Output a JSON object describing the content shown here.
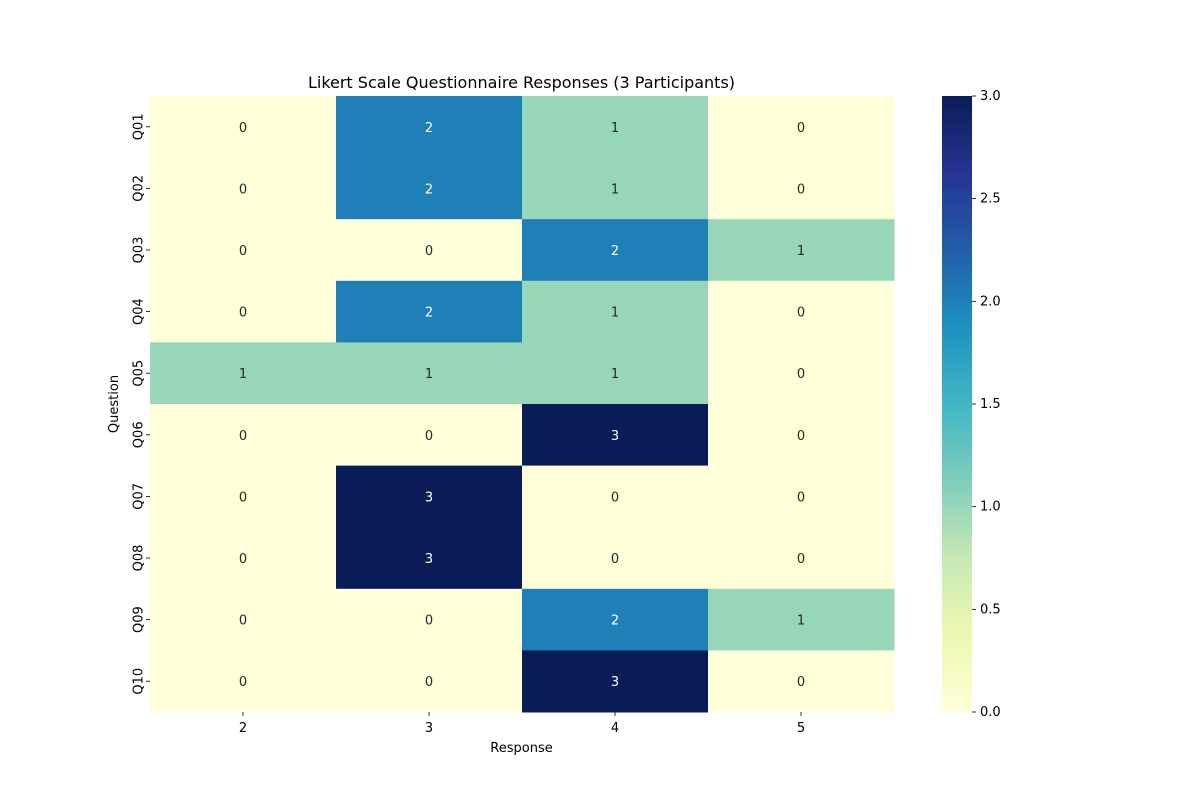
{
  "chart_data": {
    "type": "heatmap",
    "title": "Likert Scale Questionnaire Responses (3 Participants)",
    "xlabel": "Response",
    "ylabel": "Question",
    "x_categories": [
      "2",
      "3",
      "4",
      "5"
    ],
    "y_categories": [
      "Q01",
      "Q02",
      "Q03",
      "Q04",
      "Q05",
      "Q06",
      "Q07",
      "Q08",
      "Q09",
      "Q10"
    ],
    "values": [
      [
        0,
        2,
        1,
        0
      ],
      [
        0,
        2,
        1,
        0
      ],
      [
        0,
        0,
        2,
        1
      ],
      [
        0,
        2,
        1,
        0
      ],
      [
        1,
        1,
        1,
        0
      ],
      [
        0,
        0,
        3,
        0
      ],
      [
        0,
        3,
        0,
        0
      ],
      [
        0,
        3,
        0,
        0
      ],
      [
        0,
        0,
        2,
        1
      ],
      [
        0,
        0,
        3,
        0
      ]
    ],
    "colorbar": {
      "min": 0,
      "max": 3,
      "ticks": [
        "0.0",
        "0.5",
        "1.0",
        "1.5",
        "2.0",
        "2.5",
        "3.0"
      ],
      "colormap": "YlGnBu",
      "stops": [
        "#ffffd9",
        "#edf8b1",
        "#c7e9b4",
        "#7fcdbb",
        "#41b6c4",
        "#1d91c0",
        "#225ea8",
        "#253494",
        "#081d58"
      ]
    },
    "annotations": true,
    "annotation_colors": {
      "light": "#ffffff",
      "dark": "#262626"
    }
  }
}
